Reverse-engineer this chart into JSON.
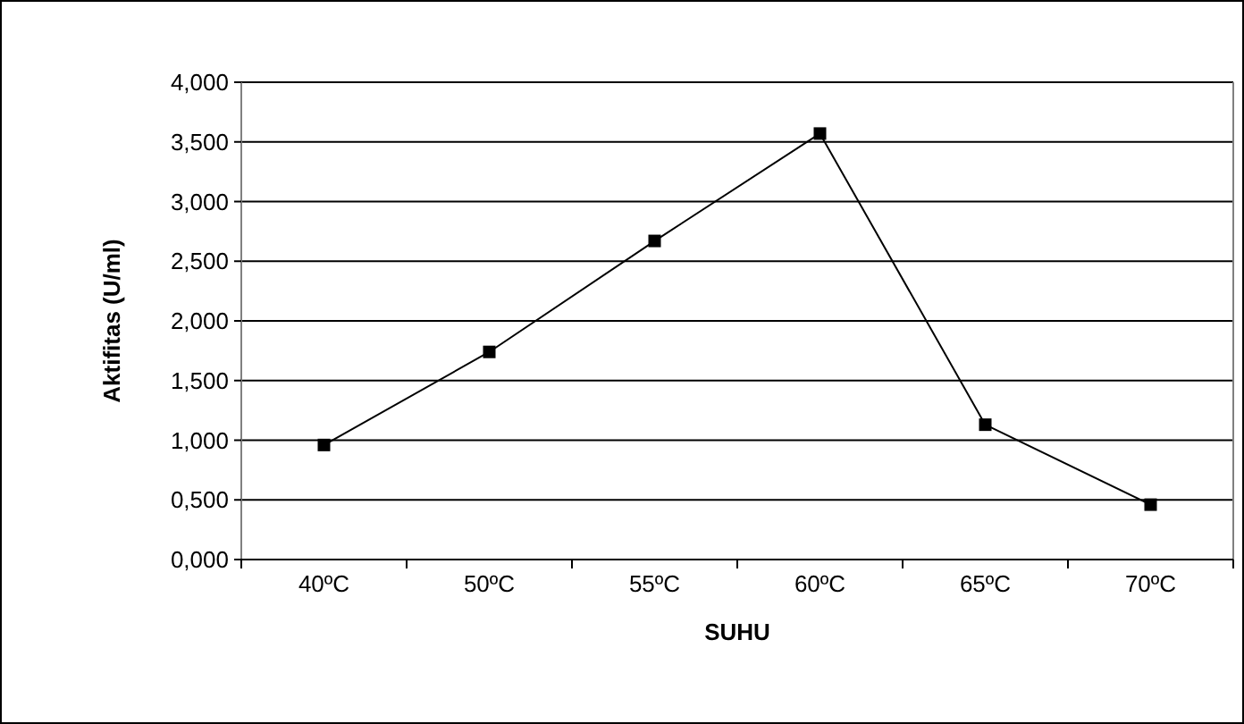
{
  "chart_data": {
    "type": "line",
    "xlabel": "SUHU",
    "ylabel": "Aktifitas (U/ml)",
    "categories": [
      "40ºC",
      "50ºC",
      "55ºC",
      "60ºC",
      "65ºC",
      "70ºC"
    ],
    "series": [
      {
        "color": "#000000",
        "values": [
          0.96,
          1.74,
          2.67,
          3.57,
          1.13,
          0.46
        ]
      }
    ],
    "ylim": [
      0,
      4
    ],
    "yticks": [
      {
        "value": 0,
        "label": "0,000"
      },
      {
        "value": 0.5,
        "label": "0,500"
      },
      {
        "value": 1,
        "label": "1,000"
      },
      {
        "value": 1.5,
        "label": "1,500"
      },
      {
        "value": 2,
        "label": "2,000"
      },
      {
        "value": 2.5,
        "label": "2,500"
      },
      {
        "value": 3,
        "label": "3,000"
      },
      {
        "value": 3.5,
        "label": "3,500"
      },
      {
        "value": 4,
        "label": "4,000"
      }
    ],
    "grid": "y",
    "marker": "square",
    "line_style": "solid"
  }
}
